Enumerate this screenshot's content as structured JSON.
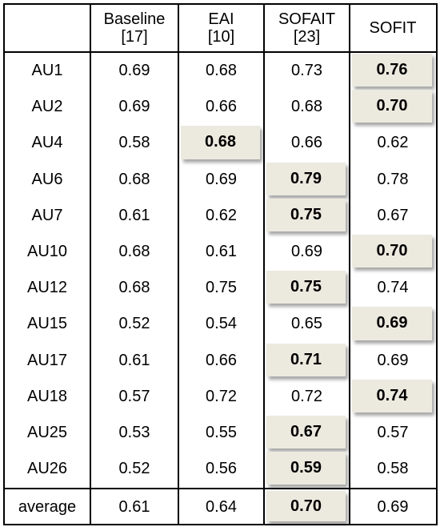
{
  "columns": [
    {
      "name": "",
      "ref": ""
    },
    {
      "name": "Baseline",
      "ref": "[17]"
    },
    {
      "name": "EAI",
      "ref": "[10]"
    },
    {
      "name": "SOFAIT",
      "ref": "[23]"
    },
    {
      "name": "SOFIT",
      "ref": ""
    }
  ],
  "rows": [
    {
      "label": "AU1",
      "values": [
        "0.69",
        "0.68",
        "0.73",
        "0.76"
      ],
      "best": 3
    },
    {
      "label": "AU2",
      "values": [
        "0.69",
        "0.66",
        "0.68",
        "0.70"
      ],
      "best": 3
    },
    {
      "label": "AU4",
      "values": [
        "0.58",
        "0.68",
        "0.66",
        "0.62"
      ],
      "best": 1
    },
    {
      "label": "AU6",
      "values": [
        "0.68",
        "0.69",
        "0.79",
        "0.78"
      ],
      "best": 2
    },
    {
      "label": "AU7",
      "values": [
        "0.61",
        "0.62",
        "0.75",
        "0.67"
      ],
      "best": 2
    },
    {
      "label": "AU10",
      "values": [
        "0.68",
        "0.61",
        "0.69",
        "0.70"
      ],
      "best": 3
    },
    {
      "label": "AU12",
      "values": [
        "0.68",
        "0.75",
        "0.75",
        "0.74"
      ],
      "best": 2
    },
    {
      "label": "AU15",
      "values": [
        "0.52",
        "0.54",
        "0.65",
        "0.69"
      ],
      "best": 3
    },
    {
      "label": "AU17",
      "values": [
        "0.61",
        "0.66",
        "0.71",
        "0.69"
      ],
      "best": 2
    },
    {
      "label": "AU18",
      "values": [
        "0.57",
        "0.72",
        "0.72",
        "0.74"
      ],
      "best": 3
    },
    {
      "label": "AU25",
      "values": [
        "0.53",
        "0.55",
        "0.67",
        "0.57"
      ],
      "best": 2
    },
    {
      "label": "AU26",
      "values": [
        "0.52",
        "0.56",
        "0.59",
        "0.58"
      ],
      "best": 2
    }
  ],
  "average": {
    "label": "average",
    "values": [
      "0.61",
      "0.64",
      "0.70",
      "0.69"
    ],
    "best": 2
  },
  "colors": {
    "highlight": "#ece9df",
    "border": "#000000"
  }
}
